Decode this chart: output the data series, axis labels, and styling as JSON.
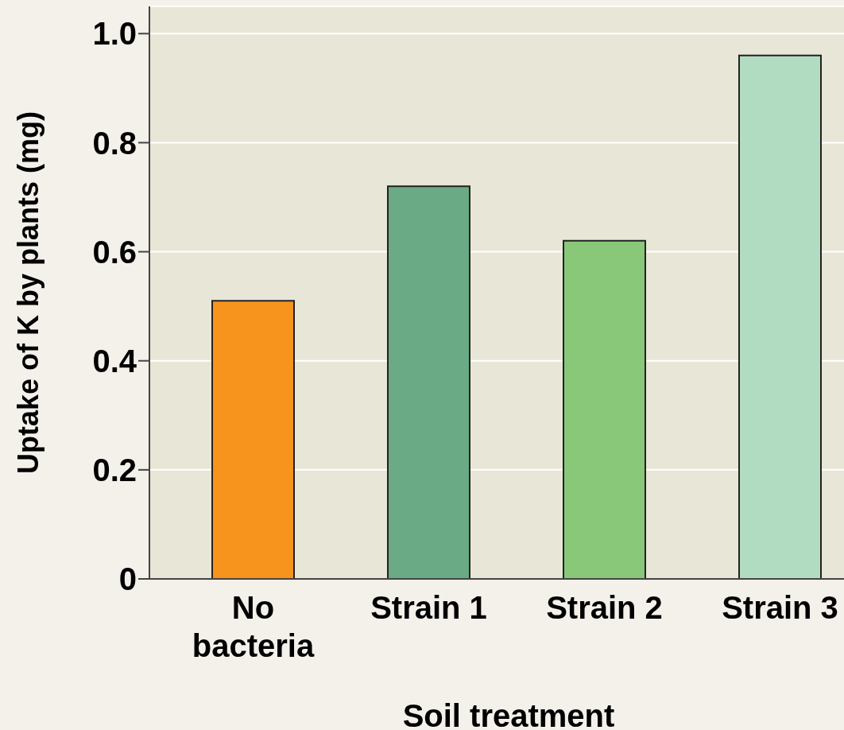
{
  "chart_data": {
    "type": "bar",
    "xlabel": "Soil treatment",
    "ylabel": "Uptake of K by plants (mg)",
    "categories": [
      "No bacteria",
      "Strain 1",
      "Strain 2",
      "Strain 3"
    ],
    "values": [
      0.51,
      0.72,
      0.62,
      0.96
    ],
    "colors": [
      "#f7941d",
      "#6aaa84",
      "#88c878",
      "#b2dcc2"
    ],
    "ylim": [
      0,
      1.05
    ],
    "yticks": [
      0,
      0.2,
      0.4,
      0.6,
      0.8,
      {
        "value": 1.0,
        "label": "1.0"
      }
    ],
    "grid": "y"
  }
}
